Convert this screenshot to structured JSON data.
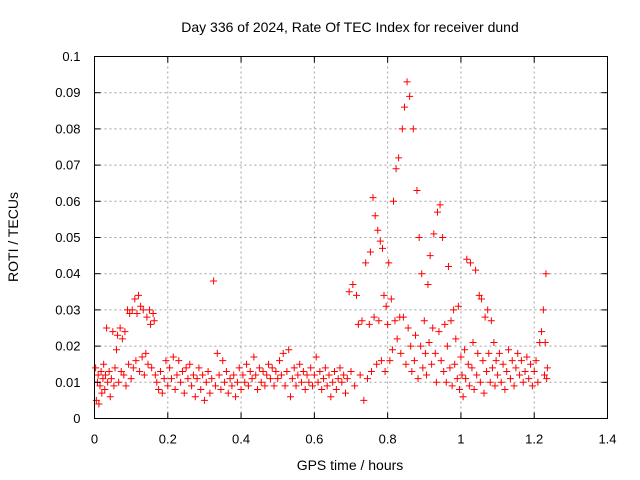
{
  "chart_data": {
    "type": "scatter",
    "title": "Day 336 of 2024, Rate Of TEC Index for receiver dund",
    "xlabel": "GPS time / hours",
    "ylabel": "ROTI / TECUs",
    "xlim": [
      0,
      1.4
    ],
    "ylim": [
      0,
      0.1
    ],
    "x_ticks": [
      "0",
      "0.2",
      "0.4",
      "0.6",
      "0.8",
      "1",
      "1.2",
      "1.4"
    ],
    "y_ticks": [
      "0",
      "0.01",
      "0.02",
      "0.03",
      "0.04",
      "0.05",
      "0.06",
      "0.07",
      "0.08",
      "0.09",
      "0.1"
    ],
    "grid": true,
    "marker": "+",
    "color": "#ff0000",
    "points": [
      [
        0.003,
        0.014
      ],
      [
        0.005,
        0.005
      ],
      [
        0.008,
        0.01
      ],
      [
        0.01,
        0.012
      ],
      [
        0.012,
        0.004
      ],
      [
        0.015,
        0.009
      ],
      [
        0.018,
        0.013
      ],
      [
        0.02,
        0.007
      ],
      [
        0.023,
        0.011
      ],
      [
        0.025,
        0.015
      ],
      [
        0.028,
        0.008
      ],
      [
        0.03,
        0.012
      ],
      [
        0.033,
        0.025
      ],
      [
        0.036,
        0.01
      ],
      [
        0.04,
        0.013
      ],
      [
        0.043,
        0.006
      ],
      [
        0.046,
        0.011
      ],
      [
        0.05,
        0.024
      ],
      [
        0.053,
        0.009
      ],
      [
        0.056,
        0.014
      ],
      [
        0.06,
        0.019
      ],
      [
        0.063,
        0.023
      ],
      [
        0.066,
        0.01
      ],
      [
        0.07,
        0.025
      ],
      [
        0.073,
        0.013
      ],
      [
        0.076,
        0.022
      ],
      [
        0.08,
        0.012
      ],
      [
        0.083,
        0.024
      ],
      [
        0.086,
        0.009
      ],
      [
        0.09,
        0.03
      ],
      [
        0.093,
        0.015
      ],
      [
        0.096,
        0.029
      ],
      [
        0.1,
        0.011
      ],
      [
        0.103,
        0.03
      ],
      [
        0.106,
        0.014
      ],
      [
        0.11,
        0.033
      ],
      [
        0.113,
        0.016
      ],
      [
        0.116,
        0.029
      ],
      [
        0.12,
        0.034
      ],
      [
        0.123,
        0.013
      ],
      [
        0.126,
        0.031
      ],
      [
        0.13,
        0.017
      ],
      [
        0.133,
        0.03
      ],
      [
        0.136,
        0.012
      ],
      [
        0.14,
        0.018
      ],
      [
        0.143,
        0.028
      ],
      [
        0.146,
        0.015
      ],
      [
        0.15,
        0.03
      ],
      [
        0.153,
        0.026
      ],
      [
        0.156,
        0.014
      ],
      [
        0.16,
        0.029
      ],
      [
        0.163,
        0.027
      ],
      [
        0.166,
        0.012
      ],
      [
        0.17,
        0.01
      ],
      [
        0.175,
        0.008
      ],
      [
        0.18,
        0.013
      ],
      [
        0.185,
        0.007
      ],
      [
        0.19,
        0.011
      ],
      [
        0.195,
        0.016
      ],
      [
        0.2,
        0.009
      ],
      [
        0.205,
        0.014
      ],
      [
        0.21,
        0.011
      ],
      [
        0.215,
        0.017
      ],
      [
        0.22,
        0.008
      ],
      [
        0.225,
        0.012
      ],
      [
        0.23,
        0.016
      ],
      [
        0.235,
        0.01
      ],
      [
        0.24,
        0.013
      ],
      [
        0.245,
        0.007
      ],
      [
        0.25,
        0.014
      ],
      [
        0.255,
        0.011
      ],
      [
        0.26,
        0.015
      ],
      [
        0.265,
        0.009
      ],
      [
        0.27,
        0.012
      ],
      [
        0.275,
        0.006
      ],
      [
        0.28,
        0.011
      ],
      [
        0.285,
        0.014
      ],
      [
        0.29,
        0.008
      ],
      [
        0.295,
        0.012
      ],
      [
        0.3,
        0.005
      ],
      [
        0.305,
        0.01
      ],
      [
        0.31,
        0.013
      ],
      [
        0.315,
        0.007
      ],
      [
        0.32,
        0.011
      ],
      [
        0.325,
        0.038
      ],
      [
        0.33,
        0.009
      ],
      [
        0.335,
        0.018
      ],
      [
        0.34,
        0.012
      ],
      [
        0.345,
        0.008
      ],
      [
        0.35,
        0.016
      ],
      [
        0.355,
        0.01
      ],
      [
        0.36,
        0.013
      ],
      [
        0.365,
        0.007
      ],
      [
        0.37,
        0.011
      ],
      [
        0.375,
        0.009
      ],
      [
        0.38,
        0.012
      ],
      [
        0.385,
        0.006
      ],
      [
        0.39,
        0.01
      ],
      [
        0.395,
        0.014
      ],
      [
        0.4,
        0.008
      ],
      [
        0.405,
        0.012
      ],
      [
        0.41,
        0.01
      ],
      [
        0.415,
        0.015
      ],
      [
        0.42,
        0.009
      ],
      [
        0.425,
        0.013
      ],
      [
        0.43,
        0.011
      ],
      [
        0.435,
        0.017
      ],
      [
        0.44,
        0.012
      ],
      [
        0.445,
        0.008
      ],
      [
        0.45,
        0.014
      ],
      [
        0.455,
        0.01
      ],
      [
        0.46,
        0.013
      ],
      [
        0.465,
        0.009
      ],
      [
        0.47,
        0.012
      ],
      [
        0.475,
        0.015
      ],
      [
        0.48,
        0.011
      ],
      [
        0.485,
        0.014
      ],
      [
        0.49,
        0.009
      ],
      [
        0.495,
        0.013
      ],
      [
        0.5,
        0.011
      ],
      [
        0.505,
        0.016
      ],
      [
        0.51,
        0.012
      ],
      [
        0.515,
        0.018
      ],
      [
        0.52,
        0.009
      ],
      [
        0.525,
        0.013
      ],
      [
        0.53,
        0.019
      ],
      [
        0.535,
        0.006
      ],
      [
        0.54,
        0.011
      ],
      [
        0.545,
        0.014
      ],
      [
        0.55,
        0.009
      ],
      [
        0.555,
        0.012
      ],
      [
        0.56,
        0.015
      ],
      [
        0.565,
        0.01
      ],
      [
        0.57,
        0.013
      ],
      [
        0.575,
        0.008
      ],
      [
        0.58,
        0.012
      ],
      [
        0.585,
        0.01
      ],
      [
        0.59,
        0.014
      ],
      [
        0.595,
        0.009
      ],
      [
        0.6,
        0.012
      ],
      [
        0.605,
        0.017
      ],
      [
        0.61,
        0.01
      ],
      [
        0.615,
        0.013
      ],
      [
        0.62,
        0.008
      ],
      [
        0.625,
        0.011
      ],
      [
        0.63,
        0.014
      ],
      [
        0.635,
        0.009
      ],
      [
        0.64,
        0.012
      ],
      [
        0.645,
        0.006
      ],
      [
        0.65,
        0.01
      ],
      [
        0.655,
        0.013
      ],
      [
        0.66,
        0.008
      ],
      [
        0.665,
        0.011
      ],
      [
        0.67,
        0.014
      ],
      [
        0.675,
        0.01
      ],
      [
        0.68,
        0.012
      ],
      [
        0.685,
        0.007
      ],
      [
        0.69,
        0.011
      ],
      [
        0.695,
        0.035
      ],
      [
        0.7,
        0.013
      ],
      [
        0.705,
        0.037
      ],
      [
        0.71,
        0.009
      ],
      [
        0.715,
        0.034
      ],
      [
        0.72,
        0.026
      ],
      [
        0.725,
        0.012
      ],
      [
        0.73,
        0.027
      ],
      [
        0.735,
        0.005
      ],
      [
        0.74,
        0.043
      ],
      [
        0.745,
        0.011
      ],
      [
        0.75,
        0.026
      ],
      [
        0.753,
        0.046
      ],
      [
        0.756,
        0.013
      ],
      [
        0.76,
        0.061
      ],
      [
        0.763,
        0.028
      ],
      [
        0.766,
        0.056
      ],
      [
        0.77,
        0.015
      ],
      [
        0.773,
        0.052
      ],
      [
        0.776,
        0.027
      ],
      [
        0.78,
        0.049
      ],
      [
        0.783,
        0.016
      ],
      [
        0.786,
        0.047
      ],
      [
        0.79,
        0.034
      ],
      [
        0.793,
        0.013
      ],
      [
        0.796,
        0.031
      ],
      [
        0.8,
        0.026
      ],
      [
        0.803,
        0.043
      ],
      [
        0.806,
        0.016
      ],
      [
        0.81,
        0.033
      ],
      [
        0.813,
        0.019
      ],
      [
        0.816,
        0.06
      ],
      [
        0.82,
        0.027
      ],
      [
        0.823,
        0.069
      ],
      [
        0.826,
        0.022
      ],
      [
        0.83,
        0.072
      ],
      [
        0.833,
        0.028
      ],
      [
        0.836,
        0.018
      ],
      [
        0.84,
        0.08
      ],
      [
        0.843,
        0.028
      ],
      [
        0.846,
        0.086
      ],
      [
        0.85,
        0.015
      ],
      [
        0.853,
        0.093
      ],
      [
        0.856,
        0.025
      ],
      [
        0.86,
        0.089
      ],
      [
        0.863,
        0.02
      ],
      [
        0.866,
        0.013
      ],
      [
        0.87,
        0.08
      ],
      [
        0.873,
        0.016
      ],
      [
        0.876,
        0.023
      ],
      [
        0.88,
        0.063
      ],
      [
        0.883,
        0.011
      ],
      [
        0.886,
        0.05
      ],
      [
        0.89,
        0.02
      ],
      [
        0.893,
        0.04
      ],
      [
        0.896,
        0.014
      ],
      [
        0.9,
        0.027
      ],
      [
        0.903,
        0.018
      ],
      [
        0.906,
        0.012
      ],
      [
        0.91,
        0.037
      ],
      [
        0.913,
        0.021
      ],
      [
        0.916,
        0.045
      ],
      [
        0.92,
        0.015
      ],
      [
        0.923,
        0.025
      ],
      [
        0.926,
        0.051
      ],
      [
        0.93,
        0.018
      ],
      [
        0.933,
        0.01
      ],
      [
        0.936,
        0.057
      ],
      [
        0.94,
        0.024
      ],
      [
        0.943,
        0.059
      ],
      [
        0.946,
        0.016
      ],
      [
        0.95,
        0.05
      ],
      [
        0.953,
        0.013
      ],
      [
        0.956,
        0.026
      ],
      [
        0.96,
        0.01
      ],
      [
        0.963,
        0.02
      ],
      [
        0.966,
        0.042
      ],
      [
        0.97,
        0.014
      ],
      [
        0.973,
        0.027
      ],
      [
        0.976,
        0.009
      ],
      [
        0.98,
        0.03
      ],
      [
        0.983,
        0.015
      ],
      [
        0.986,
        0.022
      ],
      [
        0.99,
        0.011
      ],
      [
        0.993,
        0.031
      ],
      [
        0.996,
        0.008
      ],
      [
        1.0,
        0.017
      ],
      [
        1.003,
        0.012
      ],
      [
        1.006,
        0.006
      ],
      [
        1.01,
        0.019
      ],
      [
        1.013,
        0.011
      ],
      [
        1.016,
        0.044
      ],
      [
        1.02,
        0.015
      ],
      [
        1.023,
        0.009
      ],
      [
        1.026,
        0.043
      ],
      [
        1.03,
        0.014
      ],
      [
        1.033,
        0.021
      ],
      [
        1.036,
        0.008
      ],
      [
        1.04,
        0.041
      ],
      [
        1.043,
        0.012
      ],
      [
        1.046,
        0.018
      ],
      [
        1.05,
        0.034
      ],
      [
        1.053,
        0.01
      ],
      [
        1.056,
        0.033
      ],
      [
        1.06,
        0.016
      ],
      [
        1.063,
        0.007
      ],
      [
        1.066,
        0.028
      ],
      [
        1.07,
        0.013
      ],
      [
        1.073,
        0.03
      ],
      [
        1.076,
        0.018
      ],
      [
        1.08,
        0.01
      ],
      [
        1.083,
        0.027
      ],
      [
        1.086,
        0.014
      ],
      [
        1.09,
        0.021
      ],
      [
        1.093,
        0.009
      ],
      [
        1.096,
        0.016
      ],
      [
        1.1,
        0.012
      ],
      [
        1.105,
        0.018
      ],
      [
        1.11,
        0.01
      ],
      [
        1.115,
        0.015
      ],
      [
        1.12,
        0.008
      ],
      [
        1.125,
        0.013
      ],
      [
        1.13,
        0.019
      ],
      [
        1.135,
        0.011
      ],
      [
        1.14,
        0.016
      ],
      [
        1.145,
        0.009
      ],
      [
        1.15,
        0.014
      ],
      [
        1.155,
        0.018
      ],
      [
        1.16,
        0.012
      ],
      [
        1.165,
        0.016
      ],
      [
        1.17,
        0.01
      ],
      [
        1.175,
        0.013
      ],
      [
        1.18,
        0.017
      ],
      [
        1.185,
        0.011
      ],
      [
        1.19,
        0.015
      ],
      [
        1.195,
        0.009
      ],
      [
        1.2,
        0.013
      ],
      [
        1.205,
        0.016
      ],
      [
        1.21,
        0.01
      ],
      [
        1.215,
        0.021
      ],
      [
        1.22,
        0.024
      ],
      [
        1.225,
        0.03
      ],
      [
        1.228,
        0.012
      ],
      [
        1.23,
        0.021
      ],
      [
        1.232,
        0.04
      ],
      [
        1.234,
        0.011
      ],
      [
        1.236,
        0.014
      ]
    ]
  }
}
